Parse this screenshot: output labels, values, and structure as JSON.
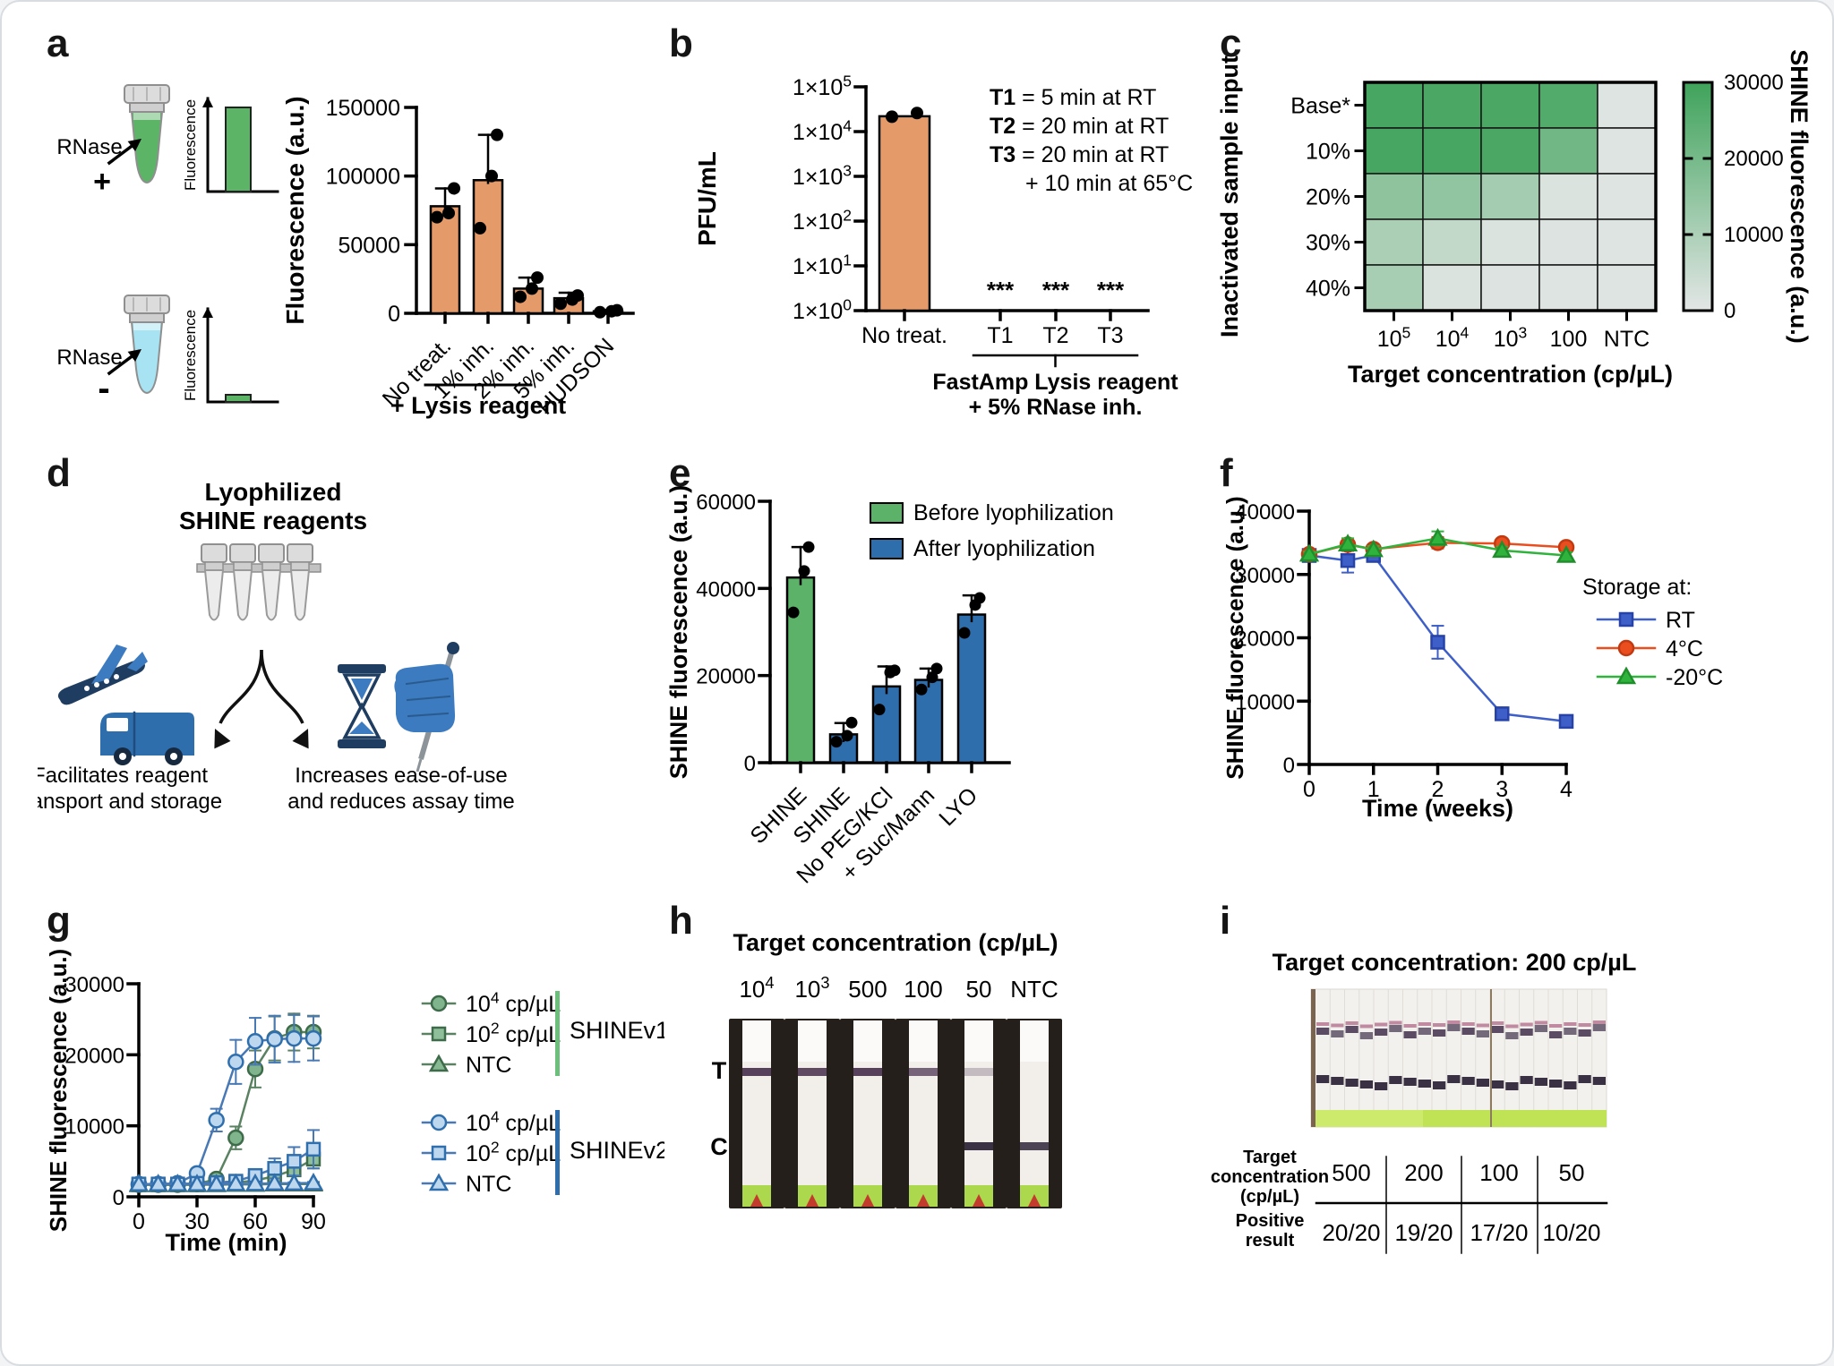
{
  "panels": {
    "a": {
      "letter": "a",
      "schematic": {
        "tube_plus_label": "RNase",
        "tube_plus_sign": "+",
        "tube_minus_label": "RNase",
        "tube_minus_sign": "-",
        "mini_axis_label": "Fluorescence",
        "tube_plus_color": "#5CB467",
        "tube_minus_color": "#A7E3F2"
      }
    },
    "b": {
      "letter": "b"
    },
    "c": {
      "letter": "c"
    },
    "d": {
      "letter": "d",
      "title_lines": [
        "Lyophilized",
        "SHINE reagents"
      ],
      "left_caption": [
        "Facilitates reagent",
        "transport and storage"
      ],
      "right_caption": [
        "Increases ease-of-use",
        "and reduces assay time"
      ]
    },
    "e": {
      "letter": "e"
    },
    "f": {
      "letter": "f"
    },
    "g": {
      "letter": "g"
    },
    "h": {
      "letter": "h",
      "title": "Target concentration (cp/µL)",
      "t_label": "T",
      "c_label": "C",
      "strips": [
        {
          "label": [
            {
              "t": "10"
            },
            {
              "t": "4",
              "sup": 1
            }
          ],
          "t": 1.0,
          "c": 0
        },
        {
          "label": [
            {
              "t": "10"
            },
            {
              "t": "3",
              "sup": 1
            }
          ],
          "t": 0.95,
          "c": 0
        },
        {
          "label": [
            {
              "t": "500"
            }
          ],
          "t": 1.0,
          "c": 0
        },
        {
          "label": [
            {
              "t": "100"
            }
          ],
          "t": 0.8,
          "c": 0
        },
        {
          "label": [
            {
              "t": "50"
            }
          ],
          "t": 0.3,
          "c": 1.0
        },
        {
          "label": [
            {
              "t": "NTC"
            }
          ],
          "t": 0,
          "c": 0.9
        }
      ]
    },
    "i": {
      "letter": "i",
      "title": "Target concentration: 200 cp/µL",
      "photo_strips": 20,
      "table": {
        "row1_header": [
          "Target",
          "concentration",
          "(cp/µL)"
        ],
        "row1": [
          "500",
          "200",
          "100",
          "50"
        ],
        "row2_header": [
          "Positive",
          "result"
        ],
        "row2": [
          "20/20",
          "19/20",
          "17/20",
          "10/20"
        ]
      }
    }
  },
  "chart_data": [
    {
      "id": "a",
      "type": "bar",
      "ylabel": "Fluorescence (a.u.)",
      "ylim": [
        0,
        150000
      ],
      "yticks": [
        0,
        50000,
        100000,
        150000
      ],
      "categories": [
        "No treat.",
        "1% inh.",
        "2% inh.",
        "5% inh.",
        "HUDSON"
      ],
      "values": [
        78000,
        97000,
        18000,
        11000,
        1500
      ],
      "errors": [
        13000,
        33000,
        8000,
        4000,
        900
      ],
      "points": [
        [
          70000,
          73000,
          91000
        ],
        [
          62000,
          100000,
          130000
        ],
        [
          12000,
          18000,
          26000
        ],
        [
          7000,
          10000,
          13000
        ],
        [
          800,
          1500,
          2200
        ]
      ],
      "bar_color": "#E49B69",
      "group_annotation": {
        "label": "+ Lysis reagent",
        "from": 1,
        "to": 3
      }
    },
    {
      "id": "b",
      "type": "bar-log",
      "ylabel": "PFU/mL",
      "ylim_exp": [
        0,
        5
      ],
      "log_prefix": "1×10",
      "categories": [
        "No treat.",
        "T1",
        "T2",
        "T3"
      ],
      "values": [
        22000,
        null,
        null,
        null
      ],
      "points": [
        [
          21500,
          26000
        ],
        null,
        null,
        null
      ],
      "sig": "***",
      "bar_color": "#E49B69",
      "bracket": {
        "from": 1,
        "to": 3,
        "label": [
          "FastAmp Lysis reagent",
          "+ 5% RNase inh."
        ]
      },
      "annotations": [
        {
          "b": "T1",
          "t": " = 5 min at RT"
        },
        {
          "b": "T2",
          "t": " = 20 min at RT"
        },
        {
          "b": "T3",
          "t": " = 20 min at RT"
        },
        {
          "b": "",
          "t": "+ 10 min at 65°C"
        }
      ]
    },
    {
      "id": "c",
      "type": "heatmap",
      "ylabel": "Inactivated sample input",
      "xlabel": "Target concentration (cp/µL)",
      "colorbar_label": "SHINE fluorescence (a.u.)",
      "rows": [
        "Base*",
        "10%",
        "20%",
        "30%",
        "40%"
      ],
      "cols": [
        [
          {
            "t": "10"
          },
          {
            "t": "5",
            "sup": 1
          }
        ],
        [
          {
            "t": "10"
          },
          {
            "t": "4",
            "sup": 1
          }
        ],
        [
          {
            "t": "10"
          },
          {
            "t": "3",
            "sup": 1
          }
        ],
        [
          {
            "t": "100"
          }
        ],
        [
          {
            "t": "NTC"
          }
        ]
      ],
      "values": [
        [
          28500,
          28000,
          28000,
          26500,
          1000
        ],
        [
          28500,
          28500,
          28000,
          21000,
          1000
        ],
        [
          15500,
          15000,
          11500,
          1500,
          1000
        ],
        [
          10500,
          6000,
          1500,
          1200,
          1000
        ],
        [
          11000,
          1500,
          1200,
          1000,
          1000
        ]
      ],
      "scale": {
        "min": 0,
        "max": 30000,
        "ticks": [
          0,
          10000,
          20000,
          30000
        ],
        "min_color": "#E3E6E6",
        "max_color": "#3FA35B"
      }
    },
    {
      "id": "e",
      "type": "bar",
      "ylabel": "SHINE fluorescence (a.u.)",
      "ylim": [
        0,
        60000
      ],
      "yticks": [
        0,
        20000,
        40000,
        60000
      ],
      "categories": [
        "SHINE",
        "SHINE",
        "No PEG/KCl",
        "+ Suc/Mann",
        "LYO"
      ],
      "values": [
        42500,
        6500,
        17500,
        19000,
        34000
      ],
      "errors": [
        7000,
        2600,
        4600,
        2600,
        4400
      ],
      "points": [
        [
          34500,
          44000,
          49500
        ],
        [
          4800,
          6200,
          9200
        ],
        [
          12200,
          20700,
          21200
        ],
        [
          16800,
          19600,
          21600
        ],
        [
          29800,
          36200,
          37800
        ]
      ],
      "bar_colors": [
        "#5BB268",
        "#2E6EAD",
        "#2E6EAD",
        "#2E6EAD",
        "#2E6EAD"
      ],
      "legend": [
        {
          "label": "Before lyophilization",
          "color": "#5BB268"
        },
        {
          "label": "After lyophilization",
          "color": "#2E6EAD"
        }
      ]
    },
    {
      "id": "f",
      "type": "line",
      "xlabel": "Time (weeks)",
      "ylabel": "SHINE fluorescence (a.u.)",
      "xlim": [
        0,
        4
      ],
      "xticks": [
        0,
        1,
        2,
        3,
        4
      ],
      "ylim": [
        0,
        40000
      ],
      "yticks": [
        0,
        10000,
        20000,
        30000,
        40000
      ],
      "legend_title": "Storage at:",
      "x": [
        0,
        0.6,
        1,
        2,
        3,
        4
      ],
      "series": [
        {
          "name": "RT",
          "color": "#3E5FC8",
          "fill": "#3E5FC8",
          "edge": "#2743A8",
          "marker": "square",
          "y": [
            33000,
            32200,
            33000,
            19300,
            8000,
            6800
          ],
          "err": [
            600,
            1900,
            700,
            2600,
            1000,
            500
          ]
        },
        {
          "name": "4°C",
          "color": "#EA4E1F",
          "fill": "#EA4E1F",
          "edge": "#C23A12",
          "marker": "circle",
          "y": [
            33200,
            34700,
            34000,
            35000,
            34900,
            34300
          ],
          "err": [
            400,
            1000,
            600,
            900,
            600,
            500
          ]
        },
        {
          "name": "-20°C",
          "color": "#2FB33C",
          "fill": "#2FB33C",
          "edge": "#1F8F2B",
          "marker": "triangle",
          "y": [
            33200,
            34800,
            33900,
            35700,
            33800,
            33000
          ],
          "err": [
            400,
            900,
            600,
            1100,
            600,
            500
          ]
        }
      ]
    },
    {
      "id": "g",
      "type": "line",
      "xlabel": "Time (min)",
      "ylabel": "SHINE fluorescence (a.u.)",
      "xlim": [
        0,
        90
      ],
      "xticks": [
        0,
        30,
        60,
        90
      ],
      "ylim": [
        0,
        30000
      ],
      "yticks": [
        0,
        10000,
        20000,
        30000
      ],
      "x": [
        0,
        10,
        20,
        30,
        40,
        50,
        60,
        70,
        80,
        90
      ],
      "series": [
        {
          "name": "SHINEv1 10^4 cp/µL",
          "color": "#5A8262",
          "fill": "#7FB48C",
          "edge": "#3E6B49",
          "marker": "circle",
          "y": [
            1700,
            1700,
            1700,
            1800,
            2500,
            8300,
            18000,
            22300,
            23200,
            23200
          ],
          "err": [
            200,
            200,
            200,
            300,
            700,
            1600,
            2600,
            3100,
            2600,
            2300
          ]
        },
        {
          "name": "SHINEv1 10^2 cp/µL",
          "color": "#5A8262",
          "fill": "#8FBF9A",
          "edge": "#3E6B49",
          "marker": "square",
          "y": [
            1700,
            1700,
            1700,
            1700,
            1900,
            2000,
            2300,
            2900,
            3800,
            5300
          ],
          "err": [
            150,
            150,
            150,
            150,
            200,
            300,
            400,
            600,
            900,
            1300
          ]
        },
        {
          "name": "SHINEv1 NTC",
          "color": "#5A8262",
          "fill": "#86B891",
          "edge": "#3E6B49",
          "marker": "triangle",
          "y": [
            1700,
            1700,
            1700,
            1700,
            1700,
            1750,
            1750,
            1800,
            1800,
            1800
          ],
          "err": [
            150,
            150,
            150,
            150,
            150,
            150,
            150,
            150,
            150,
            150
          ]
        },
        {
          "name": "SHINEv2 10^4 cp/µL",
          "color": "#4879B5",
          "fill": "#BDD7EE",
          "edge": "#2F6FAD",
          "marker": "circle",
          "y": [
            1800,
            1800,
            1900,
            3300,
            10800,
            19000,
            21900,
            22200,
            22300,
            22300
          ],
          "err": [
            200,
            250,
            350,
            600,
            1600,
            3100,
            3300,
            3300,
            3300,
            3100
          ]
        },
        {
          "name": "SHINEv2 10^2 cp/µL",
          "color": "#4879B5",
          "fill": "#BDD7EE",
          "edge": "#2F6FAD",
          "marker": "square",
          "y": [
            1800,
            1800,
            1800,
            1900,
            2000,
            2200,
            3000,
            4000,
            5000,
            6700
          ],
          "err": [
            150,
            150,
            150,
            200,
            300,
            500,
            900,
            1400,
            2000,
            2700
          ]
        },
        {
          "name": "SHINEv2 NTC",
          "color": "#4879B5",
          "fill": "#BDD7EE",
          "edge": "#2F6FAD",
          "marker": "triangle",
          "y": [
            1800,
            1800,
            1800,
            1800,
            1800,
            1850,
            1850,
            1900,
            1900,
            1950
          ],
          "err": [
            150,
            150,
            150,
            150,
            150,
            150,
            150,
            150,
            150,
            150
          ]
        }
      ],
      "legend_groups": [
        {
          "name": "SHINEv1",
          "bar_color": "#6CBF7B",
          "entries": [
            [
              {
                "t": "10"
              },
              {
                "t": "4",
                "sup": 1
              },
              {
                "t": " cp/µL"
              }
            ],
            [
              {
                "t": "10"
              },
              {
                "t": "2",
                "sup": 1
              },
              {
                "t": " cp/µL"
              }
            ],
            [
              {
                "t": "NTC"
              }
            ]
          ]
        },
        {
          "name": "SHINEv2",
          "bar_color": "#2E6EAD",
          "entries": [
            [
              {
                "t": "10"
              },
              {
                "t": "4",
                "sup": 1
              },
              {
                "t": " cp/µL"
              }
            ],
            [
              {
                "t": "10"
              },
              {
                "t": "2",
                "sup": 1
              },
              {
                "t": " cp/µL"
              }
            ],
            [
              {
                "t": "NTC"
              }
            ]
          ]
        }
      ]
    }
  ]
}
